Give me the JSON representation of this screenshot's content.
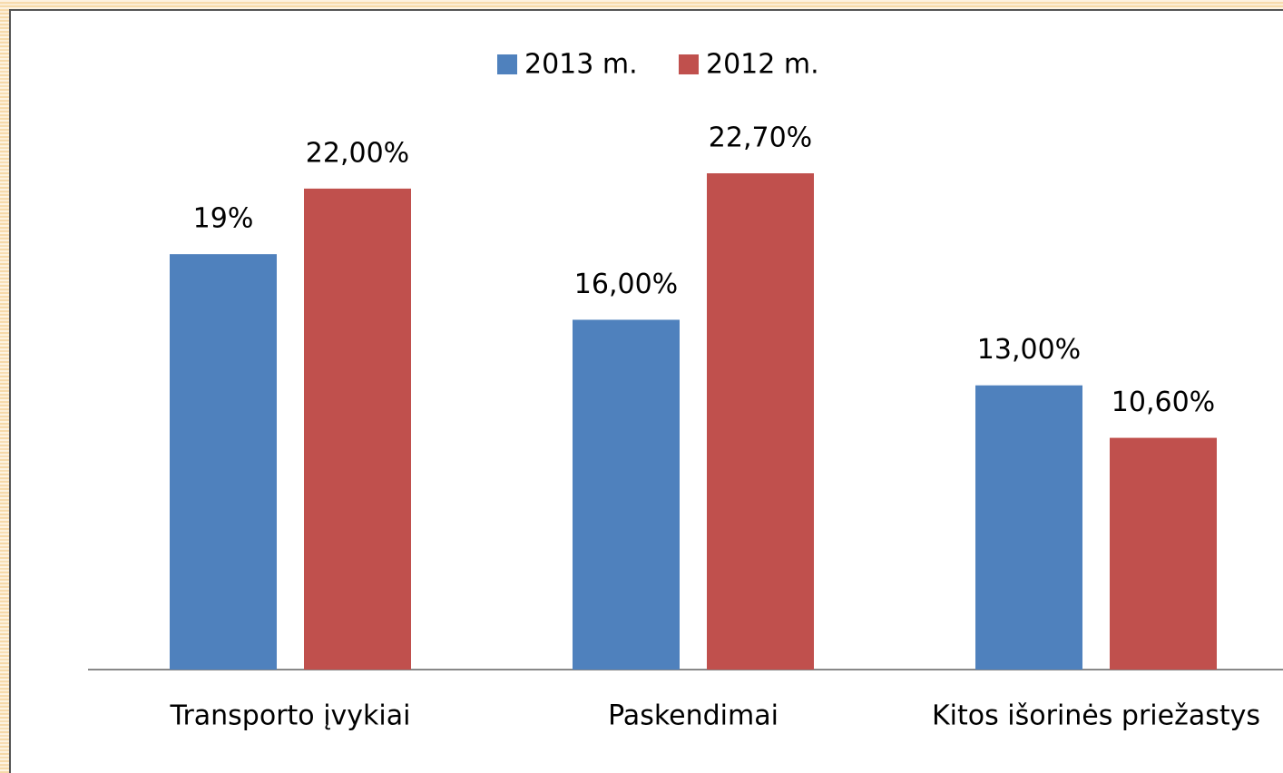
{
  "chart_data": {
    "type": "bar",
    "categories": [
      "Transporto įvykiai",
      "Paskendimai",
      "Kitos išorinės priežastys"
    ],
    "series": [
      {
        "name": "2013 m.",
        "color": "#4f81bd",
        "values": [
          19,
          16,
          13
        ],
        "value_labels": [
          "19%",
          "16,00%",
          "13,00%"
        ]
      },
      {
        "name": "2012 m.",
        "color": "#c0504d",
        "values": [
          22,
          22.7,
          10.6
        ],
        "value_labels": [
          "22,00%",
          "22,70%",
          "10,60%"
        ]
      }
    ],
    "legend": "top"
  }
}
